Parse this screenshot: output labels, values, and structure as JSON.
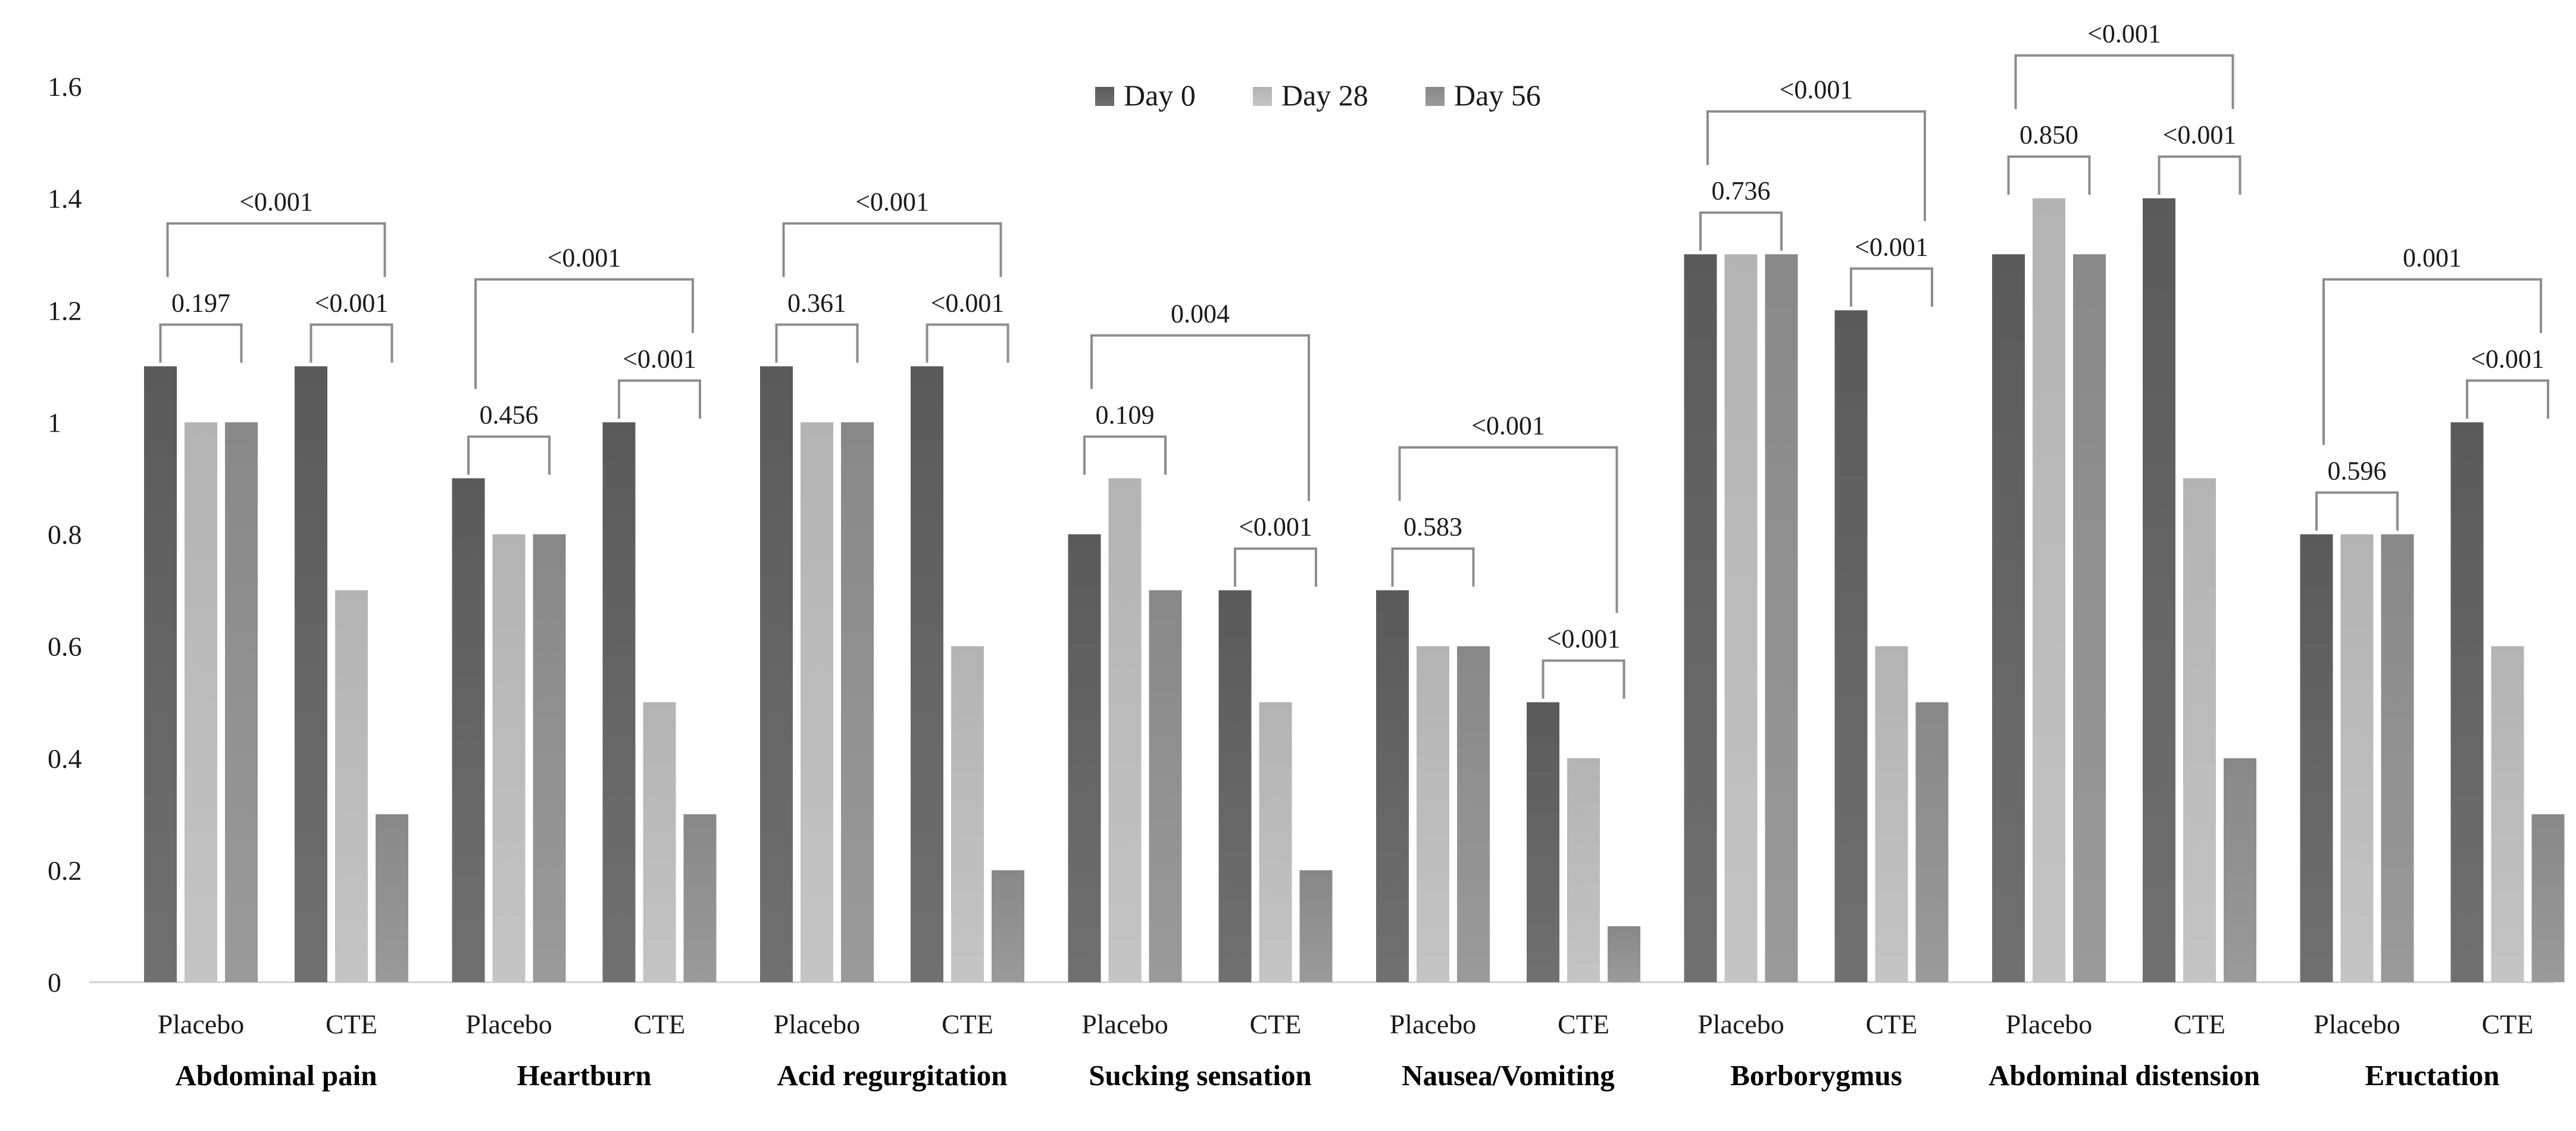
{
  "chart_data": {
    "type": "bar",
    "ylim": [
      0,
      1.6
    ],
    "yticks": [
      {
        "value": 0,
        "label": "0"
      },
      {
        "value": 0.2,
        "label": "0.2"
      },
      {
        "value": 0.4,
        "label": "0.4"
      },
      {
        "value": 0.6,
        "label": "0.6"
      },
      {
        "value": 0.8,
        "label": "0.8"
      },
      {
        "value": 1.0,
        "label": "1"
      },
      {
        "value": 1.2,
        "label": "1.2"
      },
      {
        "value": 1.4,
        "label": "1.4"
      },
      {
        "value": 1.6,
        "label": "1.6"
      }
    ],
    "series": [
      {
        "name": "Day 0",
        "color": "#5f5f5f"
      },
      {
        "name": "Day 28",
        "color": "#b8b8b8"
      },
      {
        "name": "Day 56",
        "color": "#8e8e8e"
      }
    ],
    "groups": [
      {
        "name": "Abdominal pain",
        "overall_p": "<0.001",
        "subgroups": [
          {
            "label": "Placebo",
            "values": [
              1.1,
              1.0,
              1.0
            ],
            "p": "0.197"
          },
          {
            "label": "CTE",
            "values": [
              1.1,
              0.7,
              0.3
            ],
            "p": "<0.001"
          }
        ]
      },
      {
        "name": "Heartburn",
        "overall_p": "<0.001",
        "subgroups": [
          {
            "label": "Placebo",
            "values": [
              0.9,
              0.8,
              0.8
            ],
            "p": "0.456"
          },
          {
            "label": "CTE",
            "values": [
              1.0,
              0.5,
              0.3
            ],
            "p": "<0.001"
          }
        ]
      },
      {
        "name": "Acid regurgitation",
        "overall_p": "<0.001",
        "subgroups": [
          {
            "label": "Placebo",
            "values": [
              1.1,
              1.0,
              1.0
            ],
            "p": "0.361"
          },
          {
            "label": "CTE",
            "values": [
              1.1,
              0.6,
              0.2
            ],
            "p": "<0.001"
          }
        ]
      },
      {
        "name": "Sucking sensation",
        "overall_p": "0.004",
        "subgroups": [
          {
            "label": "Placebo",
            "values": [
              0.8,
              0.9,
              0.7
            ],
            "p": "0.109"
          },
          {
            "label": "CTE",
            "values": [
              0.7,
              0.5,
              0.2
            ],
            "p": "<0.001"
          }
        ]
      },
      {
        "name": "Nausea/Vomiting",
        "overall_p": "<0.001",
        "subgroups": [
          {
            "label": "Placebo",
            "values": [
              0.7,
              0.6,
              0.6
            ],
            "p": "0.583"
          },
          {
            "label": "CTE",
            "values": [
              0.5,
              0.4,
              0.1
            ],
            "p": "<0.001"
          }
        ]
      },
      {
        "name": "Borborygmus",
        "overall_p": "<0.001",
        "subgroups": [
          {
            "label": "Placebo",
            "values": [
              1.3,
              1.3,
              1.3
            ],
            "p": "0.736"
          },
          {
            "label": "CTE",
            "values": [
              1.2,
              0.6,
              0.5
            ],
            "p": "<0.001"
          }
        ]
      },
      {
        "name": "Abdominal distension",
        "overall_p": "<0.001",
        "subgroups": [
          {
            "label": "Placebo",
            "values": [
              1.3,
              1.4,
              1.3
            ],
            "p": "0.850"
          },
          {
            "label": "CTE",
            "values": [
              1.4,
              0.9,
              0.4
            ],
            "p": "<0.001"
          }
        ]
      },
      {
        "name": "Eructation",
        "overall_p": "0.001",
        "subgroups": [
          {
            "label": "Placebo",
            "values": [
              0.8,
              0.8,
              0.8
            ],
            "p": "0.596"
          },
          {
            "label": "CTE",
            "values": [
              1.0,
              0.6,
              0.3
            ],
            "p": "<0.001"
          }
        ]
      }
    ]
  }
}
